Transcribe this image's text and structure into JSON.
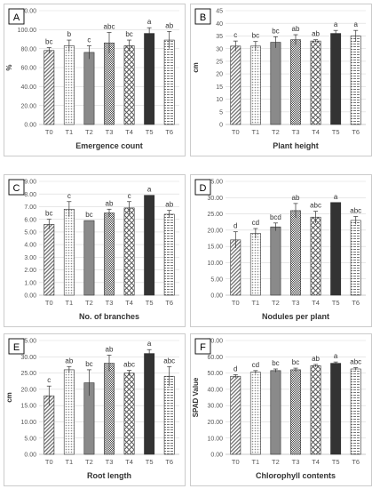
{
  "patterns": [
    "diag",
    "dots",
    "solid-gray",
    "checker",
    "cross",
    "solid-black",
    "hdash"
  ],
  "colors": {
    "bar_dark": "#333333",
    "bar_gray": "#8a8a8a",
    "grid": "#d9d9d9",
    "axis": "#bfbfbf",
    "text": "#555555",
    "title": "#333333"
  },
  "chart_data": [
    {
      "type": "bar",
      "panel_label": "A",
      "xlabel": "Emergence count",
      "ylabel": "%",
      "categories": [
        "T0",
        "T1",
        "T2",
        "T3",
        "T4",
        "T5",
        "T6"
      ],
      "values": [
        78,
        83,
        76,
        86,
        83,
        96,
        89
      ],
      "errors": [
        3,
        6,
        7,
        11,
        6,
        6,
        9
      ],
      "letters": [
        "bc",
        "b",
        "c",
        "abc",
        "bc",
        "a",
        "ab"
      ],
      "ylim": [
        0,
        120
      ],
      "yticks": [
        "0.00",
        "20.00",
        "40.00",
        "60.00",
        "80.00",
        "100.00",
        "120.00"
      ],
      "grid": true
    },
    {
      "type": "bar",
      "panel_label": "B",
      "xlabel": "Plant height",
      "ylabel": "cm",
      "categories": [
        "T0",
        "T1",
        "T2",
        "T3",
        "T4",
        "T5",
        "T6"
      ],
      "values": [
        31,
        31,
        32.5,
        33.5,
        33,
        36,
        35
      ],
      "errors": [
        2,
        1.8,
        2.2,
        2,
        0.5,
        1.2,
        2.2
      ],
      "letters": [
        "c",
        "bc",
        "bc",
        "ab",
        "ab",
        "a",
        "a"
      ],
      "ylim": [
        0,
        45
      ],
      "yticks": [
        "0",
        "5",
        "10",
        "15",
        "20",
        "25",
        "30",
        "35",
        "40",
        "45"
      ],
      "grid": true
    },
    {
      "type": "bar",
      "panel_label": "C",
      "xlabel": "No. of branches",
      "ylabel": "",
      "categories": [
        "T0",
        "T1",
        "T2",
        "T3",
        "T4",
        "T5",
        "T6"
      ],
      "values": [
        5.6,
        6.8,
        5.9,
        6.5,
        6.9,
        7.9,
        6.4
      ],
      "errors": [
        0.4,
        0.6,
        0,
        0.3,
        0.5,
        0,
        0.3
      ],
      "letters": [
        "bc",
        "c",
        "bc",
        "ab",
        "c",
        "a",
        "ab"
      ],
      "ylim": [
        0,
        9
      ],
      "yticks": [
        "0.00",
        "1.00",
        "2.00",
        "3.00",
        "4.00",
        "5.00",
        "6.00",
        "7.00",
        "8.00",
        "9.00"
      ],
      "grid": true
    },
    {
      "type": "bar",
      "panel_label": "D",
      "xlabel": "Nodules per plant",
      "ylabel": "",
      "categories": [
        "T0",
        "T1",
        "T2",
        "T3",
        "T4",
        "T5",
        "T6"
      ],
      "values": [
        17,
        19,
        21,
        26,
        24,
        28.5,
        23
      ],
      "errors": [
        2.5,
        1.5,
        1.2,
        2.2,
        1.8,
        0,
        1.2
      ],
      "letters": [
        "d",
        "cd",
        "bcd",
        "ab",
        "abc",
        "a",
        "abc"
      ],
      "ylim": [
        0,
        35
      ],
      "yticks": [
        "0.00",
        "5.00",
        "10.00",
        "15.00",
        "20.00",
        "25.00",
        "30.00",
        "35.00"
      ],
      "grid": true
    },
    {
      "type": "bar",
      "panel_label": "E",
      "xlabel": "Root length",
      "ylabel": "cm",
      "categories": [
        "T0",
        "T1",
        "T2",
        "T3",
        "T4",
        "T5",
        "T6"
      ],
      "values": [
        18,
        26,
        22,
        28,
        25,
        31,
        24
      ],
      "errors": [
        3,
        1,
        4,
        2.5,
        0.8,
        1.2,
        3
      ],
      "letters": [
        "c",
        "ab",
        "bc",
        "ab",
        "abc",
        "a",
        "abc"
      ],
      "ylim": [
        0,
        35
      ],
      "yticks": [
        "0.00",
        "5.00",
        "10.00",
        "15.00",
        "20.00",
        "25.00",
        "30.00",
        "35.00"
      ],
      "grid": true
    },
    {
      "type": "bar",
      "panel_label": "F",
      "xlabel": "Chlorophyll contents",
      "ylabel": "SPAD Value",
      "categories": [
        "T0",
        "T1",
        "T2",
        "T3",
        "T4",
        "T5",
        "T6"
      ],
      "values": [
        48,
        50.5,
        51.5,
        52,
        54.5,
        56,
        52.5
      ],
      "errors": [
        1,
        1,
        1,
        1,
        0.8,
        0.8,
        0.8
      ],
      "letters": [
        "d",
        "cd",
        "bc",
        "bc",
        "ab",
        "a",
        "abc"
      ],
      "ylim": [
        0,
        70
      ],
      "yticks": [
        "0.00",
        "10.00",
        "20.00",
        "30.00",
        "40.00",
        "50.00",
        "60.00",
        "70.00"
      ],
      "grid": true
    }
  ]
}
